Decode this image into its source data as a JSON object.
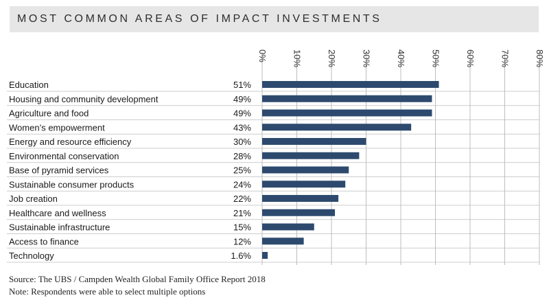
{
  "title": "MOST COMMON AREAS OF IMPACT INVESTMENTS",
  "source": "Source: The UBS / Campden Wealth Global Family Office Report 2018",
  "note": "Note: Respondents were able to select multiple options",
  "colors": {
    "bar": "#2d4a6e",
    "grid": "#bdbdbd",
    "band": "#e6e6e6"
  },
  "chart_data": {
    "type": "bar",
    "orientation": "horizontal",
    "xlim": [
      0,
      80
    ],
    "xticks": [
      "0%",
      "10%",
      "20%",
      "30%",
      "40%",
      "50%",
      "60%",
      "70%",
      "80%"
    ],
    "grid": true,
    "categories": [
      "Education",
      "Housing and community development",
      "Agriculture and food",
      "Women’s empowerment",
      "Energy and resource efficiency",
      "Environmental conservation",
      "Base of pyramid services",
      "Sustainable consumer products",
      "Job creation",
      "Healthcare and wellness",
      "Sustainable infrastructure",
      "Access to finance",
      "Technology"
    ],
    "values": [
      51,
      49,
      49,
      43,
      30,
      28,
      25,
      24,
      22,
      21,
      15,
      12,
      1.6
    ],
    "value_labels": [
      "51%",
      "49%",
      "49%",
      "43%",
      "30%",
      "28%",
      "25%",
      "24%",
      "22%",
      "21%",
      "15%",
      "12%",
      "1.6%"
    ]
  }
}
